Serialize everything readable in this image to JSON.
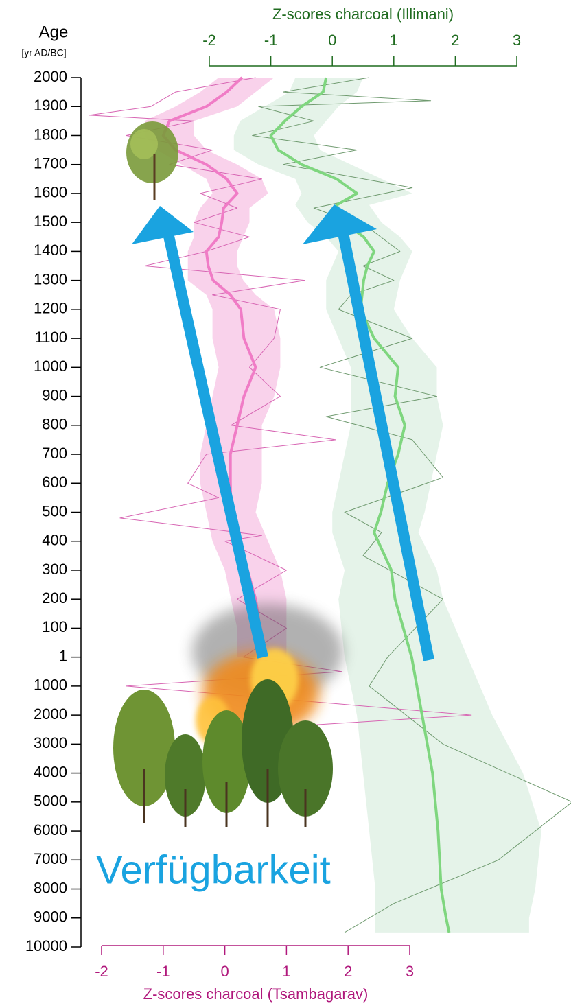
{
  "chart_data": {
    "type": "line",
    "y_label": "Age",
    "y_unit": "[yr AD/BC]",
    "ylim": [
      2000,
      -10000
    ],
    "yticks": [
      2000,
      1900,
      1800,
      1700,
      1600,
      1500,
      1400,
      1300,
      1200,
      1100,
      1000,
      900,
      800,
      700,
      600,
      500,
      400,
      300,
      200,
      100,
      1,
      {
        "value": -1000,
        "label": "1000"
      },
      {
        "value": -2000,
        "label": "2000"
      },
      {
        "value": -3000,
        "label": "3000"
      },
      {
        "value": -4000,
        "label": "4000"
      },
      {
        "value": -5000,
        "label": "5000"
      },
      {
        "value": -6000,
        "label": "6000"
      },
      {
        "value": -7000,
        "label": "7000"
      },
      {
        "value": -8000,
        "label": "8000"
      },
      {
        "value": -9000,
        "label": "9000"
      },
      {
        "value": -10000,
        "label": "10000"
      }
    ],
    "x_top": {
      "label": "Z-scores charcoal (Illimani)",
      "color": "#1f6b1f",
      "xlim": [
        -2,
        3
      ],
      "xticks": [
        -2,
        -1,
        0,
        1,
        2,
        3
      ]
    },
    "x_bottom": {
      "label": "Z-scores charcoal (Tsambagarav)",
      "color": "#b0187c",
      "xlim": [
        -2,
        3
      ],
      "xticks": [
        -2,
        -1,
        0,
        1,
        2,
        3
      ]
    },
    "annotation": "Verfügbarkeit",
    "series": [
      {
        "axis": "x_bottom",
        "color": "#f07cc6",
        "band_color": "#f7c3e4",
        "line_width": 4,
        "y": [
          2000,
          1950,
          1900,
          1850,
          1800,
          1750,
          1700,
          1650,
          1600,
          1550,
          1500,
          1450,
          1400,
          1350,
          1300,
          1250,
          1200,
          1100,
          1000,
          900,
          800,
          700,
          600,
          500,
          400,
          300,
          200,
          100,
          1
        ],
        "values": [
          0.28,
          0.03,
          -0.3,
          -0.9,
          -1.0,
          -0.8,
          -0.3,
          0.03,
          0.2,
          -0.02,
          -0.05,
          -0.1,
          -0.3,
          -0.27,
          -0.19,
          0.09,
          0.26,
          0.31,
          0.5,
          0.31,
          0.2,
          0.09,
          0.09,
          0.1,
          0.2,
          0.37,
          0.5,
          0.57,
          0.6
        ],
        "lower": [
          -0.1,
          -0.4,
          -0.8,
          -1.3,
          -1.3,
          -1.1,
          -0.7,
          -0.3,
          -0.2,
          -0.4,
          -0.5,
          -0.5,
          -0.6,
          -0.6,
          -0.6,
          -0.3,
          -0.2,
          -0.2,
          -0.1,
          -0.2,
          -0.3,
          -0.4,
          -0.4,
          -0.3,
          -0.2,
          0.0,
          0.1,
          0.2,
          0.2
        ],
        "upper": [
          0.8,
          0.5,
          0.2,
          -0.5,
          -0.5,
          -0.3,
          0.2,
          0.6,
          0.7,
          0.4,
          0.4,
          0.3,
          0.2,
          0.2,
          0.3,
          0.5,
          0.8,
          0.9,
          0.9,
          0.8,
          0.6,
          0.6,
          0.6,
          0.5,
          0.7,
          0.9,
          1.0,
          1.0,
          1.0
        ]
      },
      {
        "axis": "x_top",
        "color": "#7fd67f",
        "band_color": "#dcefe2",
        "line_width": 4,
        "y": [
          2000,
          1950,
          1900,
          1850,
          1800,
          1750,
          1700,
          1650,
          1600,
          1560,
          1500,
          1450,
          1400,
          1350,
          1300,
          1200,
          1100,
          1000,
          900,
          800,
          700,
          600,
          500,
          430,
          300,
          200,
          1,
          -2000,
          -4000,
          -6000,
          -8000,
          -9000,
          -9500
        ],
        "values": [
          -0.1,
          -0.15,
          -0.5,
          -0.77,
          -1.0,
          -0.88,
          -0.5,
          0.07,
          0.4,
          0.07,
          0.18,
          0.51,
          0.68,
          0.57,
          0.51,
          0.46,
          0.68,
          1.07,
          1.02,
          1.18,
          1.07,
          0.9,
          0.79,
          0.68,
          0.96,
          1.02,
          1.29,
          1.46,
          1.63,
          1.72,
          1.77,
          1.85,
          1.9
        ],
        "lower": [
          -0.6,
          -0.7,
          -1.1,
          -1.5,
          -1.6,
          -1.6,
          -1.2,
          -0.6,
          -0.5,
          -0.6,
          -0.4,
          -0.1,
          0.1,
          0.0,
          -0.1,
          -0.1,
          0.1,
          0.3,
          0.3,
          0.3,
          0.2,
          0.1,
          0.0,
          0.0,
          0.2,
          0.1,
          0.2,
          0.4,
          0.5,
          0.6,
          0.7,
          0.7,
          0.7
        ],
        "upper": [
          0.5,
          0.4,
          0.1,
          -0.1,
          -0.3,
          -0.2,
          0.3,
          0.8,
          1.3,
          0.6,
          0.8,
          1.1,
          1.3,
          1.2,
          1.1,
          1.0,
          1.3,
          1.7,
          1.7,
          1.8,
          1.7,
          1.6,
          1.5,
          1.4,
          1.7,
          1.8,
          2.2,
          2.6,
          3.1,
          3.4,
          3.3,
          3.2,
          3.2
        ]
      },
      {
        "axis": "x_bottom",
        "color": "#d765b3",
        "line_width": 1,
        "y": [
          2000,
          1950,
          1900,
          1870,
          1850,
          1800,
          1750,
          1700,
          1650,
          1600,
          1550,
          1500,
          1450,
          1400,
          1350,
          1300,
          1250,
          1200,
          1100,
          1000,
          900,
          800,
          750,
          700,
          600,
          550,
          480,
          420,
          400,
          300,
          200,
          100,
          1,
          -500,
          -1000,
          -1500,
          -2000,
          -2500,
          -3000
        ],
        "values": [
          0.5,
          -0.8,
          -1.2,
          -2.2,
          -0.5,
          -1.6,
          -0.2,
          -0.9,
          0.6,
          -0.4,
          0.2,
          -0.5,
          0.4,
          -0.3,
          -1.3,
          1.3,
          -0.2,
          0.9,
          0.8,
          0.4,
          0.9,
          0.1,
          1.8,
          -0.3,
          -0.6,
          -0.1,
          -1.7,
          0.6,
          0.0,
          1.0,
          0.2,
          1.0,
          0.3,
          1.9,
          -1.6,
          1.2,
          4.0,
          0.2,
          1.5
        ]
      },
      {
        "axis": "x_top",
        "color": "#6f9a6f",
        "line_width": 1,
        "y": [
          2000,
          1950,
          1920,
          1900,
          1850,
          1800,
          1750,
          1700,
          1620,
          1550,
          1480,
          1400,
          1350,
          1300,
          1250,
          1200,
          1100,
          1000,
          900,
          830,
          750,
          620,
          500,
          430,
          350,
          200,
          1,
          -1000,
          -3000,
          -5000,
          -7000,
          -8500,
          -9500
        ],
        "values": [
          0.6,
          -0.8,
          1.6,
          -1.2,
          -0.3,
          -1.3,
          0.4,
          -0.8,
          1.3,
          -0.3,
          0.6,
          1.1,
          0.5,
          1.0,
          0.3,
          0.1,
          1.3,
          -0.2,
          1.7,
          -0.1,
          1.3,
          1.8,
          0.2,
          0.8,
          0.5,
          1.8,
          0.9,
          0.6,
          1.8,
          3.9,
          2.7,
          1.0,
          0.2
        ]
      }
    ]
  }
}
